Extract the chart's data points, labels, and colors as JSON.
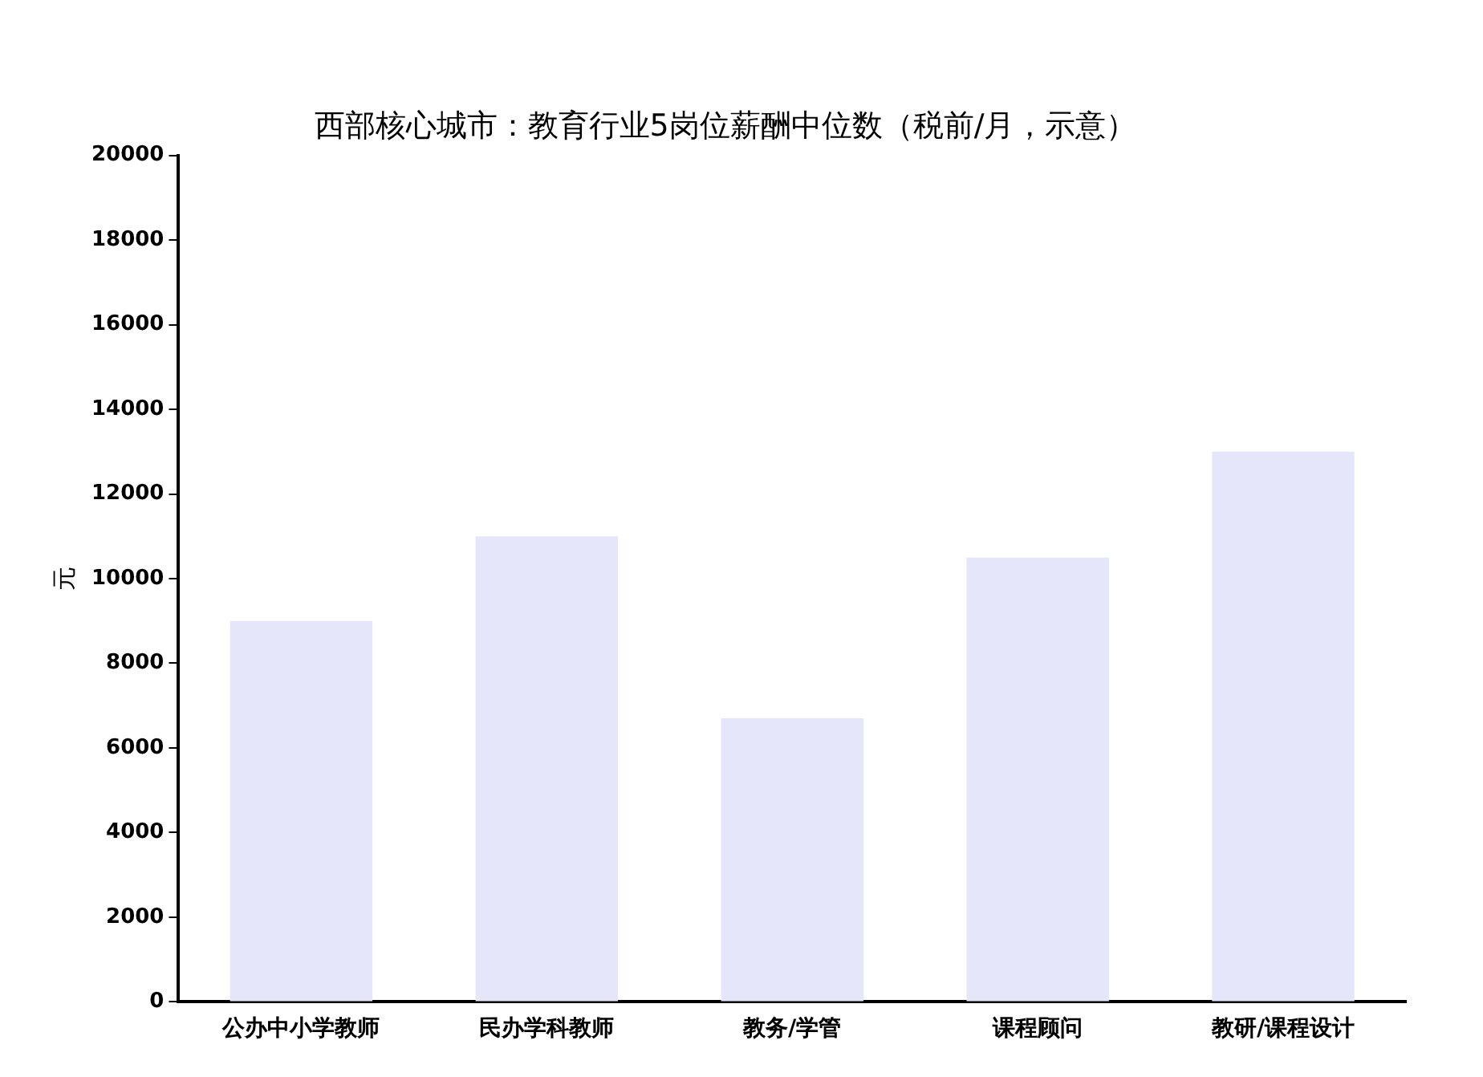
{
  "chart_data": {
    "type": "bar",
    "title": "西部核心城市：教育行业5岗位薪酬中位数（税前/月，示意）",
    "ylabel": "元",
    "categories": [
      "公办中小学教师",
      "民办学科教师",
      "教务/学管",
      "课程顾问",
      "教研/课程设计"
    ],
    "values": [
      9000,
      11000,
      6700,
      10500,
      13000
    ],
    "color": "#e6e6fa",
    "ylim": [
      0,
      20000
    ],
    "yticks": [
      0,
      2000,
      4000,
      6000,
      8000,
      10000,
      12000,
      14000,
      16000,
      18000,
      20000
    ],
    "grid": false,
    "legend": false
  }
}
